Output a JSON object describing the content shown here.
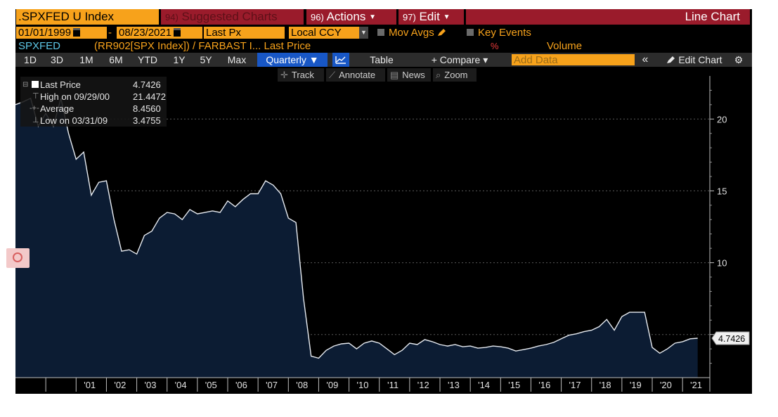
{
  "header": {
    "ticker": ".SPXFED U Index",
    "suggested_num": "94)",
    "suggested_label": "Suggested Charts",
    "actions_num": "96)",
    "actions_label": "Actions",
    "edit_num": "97)",
    "edit_label": "Edit",
    "chart_type_title": "Line Chart"
  },
  "controls": {
    "start_date": "01/01/1999",
    "date_separator": "-",
    "end_date": "08/23/2021",
    "field": "Last Px",
    "currency": "Local CCY",
    "mov_avgs": "Mov Avgs",
    "key_events": "Key Events"
  },
  "series_row": {
    "security": "SPXFED",
    "formula": "(RR902[SPX Index]) / FARBAST I...",
    "field": "Last Price",
    "percent": "%",
    "volume": "Volume"
  },
  "toolbar": {
    "periods": [
      "1D",
      "3D",
      "1M",
      "6M",
      "YTD",
      "1Y",
      "5Y",
      "Max"
    ],
    "frequency": "Quarterly",
    "frequency_caret": "▼",
    "table": "Table",
    "compare": "+ Compare",
    "compare_caret": "▾",
    "add_data_placeholder": "Add Data",
    "collapse": "«",
    "edit_chart": "Edit Chart",
    "settings": "⚙"
  },
  "chart_tools": {
    "track": "Track",
    "annotate": "Annotate",
    "news": "News",
    "zoom": "Zoom"
  },
  "legend": {
    "last_price_label": "Last Price",
    "last_price_value": "4.7426",
    "high_label": "High on 09/29/00",
    "high_value": "21.4472",
    "average_label": "Average",
    "average_value": "8.4560",
    "low_label": "Low on 03/31/09",
    "low_value": "3.4755"
  },
  "colors": {
    "accent_orange": "#f7a21b",
    "header_red": "#9a1b2b",
    "active_blue": "#1857c6",
    "area_fill": "#0c1c33",
    "line": "#e8ecf2",
    "security_cyan": "#5ec8e8"
  },
  "chart_data": {
    "type": "area",
    "frequency": "quarterly",
    "last_value_label": "4.7426",
    "ylim": [
      2.0,
      23.0
    ],
    "yticks": [
      5,
      10,
      15,
      20
    ],
    "ytick_labels": [
      "",
      "10",
      "15",
      "20"
    ],
    "xlim": [
      1999.0,
      2021.9
    ],
    "xtick_labels": [
      "'01",
      "'02",
      "'03",
      "'04",
      "'05",
      "'06",
      "'07",
      "'08",
      "'09",
      "'10",
      "'11",
      "'12",
      "'13",
      "'14",
      "'15",
      "'16",
      "'17",
      "'18",
      "'19",
      "'20",
      "'21"
    ],
    "grid": "horizontal dashed",
    "legend": "top-left",
    "series": [
      {
        "x": [
          1999.0,
          1999.25,
          1999.5,
          1999.75,
          2000.0,
          2000.25,
          2000.5,
          2000.75,
          2001.0,
          2001.25,
          2001.5,
          2001.75,
          2002.0,
          2002.25,
          2002.5,
          2002.75,
          2003.0,
          2003.25,
          2003.5,
          2003.75,
          2004.0,
          2004.25,
          2004.5,
          2004.75,
          2005.0,
          2005.25,
          2005.5,
          2005.75,
          2006.0,
          2006.25,
          2006.5,
          2006.75,
          2007.0,
          2007.25,
          2007.5,
          2007.75,
          2008.0,
          2008.25,
          2008.5,
          2008.75,
          2009.0,
          2009.25,
          2009.5,
          2009.75,
          2010.0,
          2010.25,
          2010.5,
          2010.75,
          2011.0,
          2011.25,
          2011.5,
          2011.75,
          2012.0,
          2012.25,
          2012.5,
          2012.75,
          2013.0,
          2013.25,
          2013.5,
          2013.75,
          2014.0,
          2014.25,
          2014.5,
          2014.75,
          2015.0,
          2015.25,
          2015.5,
          2015.75,
          2016.0,
          2016.25,
          2016.5,
          2016.75,
          2017.0,
          2017.25,
          2017.5,
          2017.75,
          2018.0,
          2018.25,
          2018.5,
          2018.75,
          2019.0,
          2019.25,
          2019.5,
          2019.75,
          2020.0,
          2020.25,
          2020.5,
          2020.75,
          2021.0,
          2021.25,
          2021.5
        ],
        "values": [
          21.0,
          21.2,
          21.45,
          19.5,
          20.4,
          19.5,
          21.45,
          19.0,
          17.2,
          17.7,
          14.7,
          15.6,
          15.7,
          13.0,
          10.8,
          10.9,
          10.6,
          11.9,
          12.2,
          13.1,
          13.5,
          13.4,
          13.0,
          13.7,
          13.4,
          13.5,
          13.6,
          13.5,
          14.3,
          13.9,
          14.4,
          14.8,
          14.8,
          15.7,
          15.4,
          14.8,
          13.1,
          12.8,
          7.5,
          3.5,
          3.35,
          3.9,
          4.2,
          4.35,
          4.4,
          4.0,
          4.4,
          4.55,
          4.4,
          4.0,
          3.6,
          3.9,
          4.4,
          4.3,
          4.65,
          4.5,
          4.3,
          4.2,
          4.3,
          4.15,
          4.2,
          4.05,
          4.1,
          4.2,
          4.15,
          4.05,
          3.85,
          3.95,
          4.05,
          4.2,
          4.3,
          4.45,
          4.7,
          4.95,
          5.05,
          5.2,
          5.3,
          5.55,
          6.05,
          5.3,
          6.25,
          6.55,
          6.55,
          6.55,
          4.1,
          3.7,
          4.0,
          4.4,
          4.5,
          4.7,
          4.74
        ]
      }
    ]
  }
}
